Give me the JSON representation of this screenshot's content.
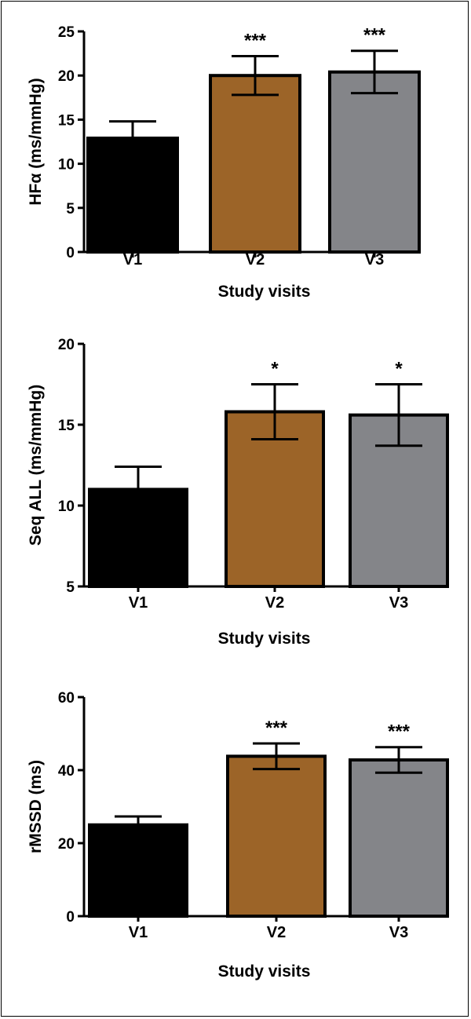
{
  "chart_data": [
    {
      "type": "bar",
      "categories": [
        "V1",
        "V2",
        "V3"
      ],
      "values": [
        12.9,
        20.0,
        20.4
      ],
      "errors": [
        1.9,
        2.2,
        2.4
      ],
      "significance": [
        "",
        "***",
        "***"
      ],
      "xlabel": "Study visits",
      "ylabel": "HFα (ms/mmHg)",
      "ylim": [
        0,
        25
      ],
      "yticks": [
        "0",
        "5",
        "10",
        "15",
        "20",
        "25"
      ],
      "grid": false
    },
    {
      "type": "bar",
      "categories": [
        "V1",
        "V2",
        "V3"
      ],
      "values": [
        11.0,
        15.8,
        15.6
      ],
      "errors": [
        1.4,
        1.7,
        1.9
      ],
      "significance": [
        "",
        "*",
        "*"
      ],
      "xlabel": "Study visits",
      "ylabel": "Seq ALL (ms/mmHg)",
      "ylim": [
        5,
        20
      ],
      "yticks": [
        "5",
        "10",
        "15",
        "20"
      ],
      "grid": false
    },
    {
      "type": "bar",
      "categories": [
        "V1",
        "V2",
        "V3"
      ],
      "values": [
        25.0,
        43.8,
        42.8
      ],
      "errors": [
        2.3,
        3.5,
        3.5
      ],
      "significance": [
        "",
        "***",
        "***"
      ],
      "xlabel": "Study visits",
      "ylabel": "rMSSD (ms)",
      "ylim": [
        0,
        60
      ],
      "yticks": [
        "0",
        "20",
        "40",
        "60"
      ],
      "grid": false
    }
  ],
  "colors": {
    "V1": "#000000",
    "V2": "#9c6428",
    "V3": "#848589"
  }
}
